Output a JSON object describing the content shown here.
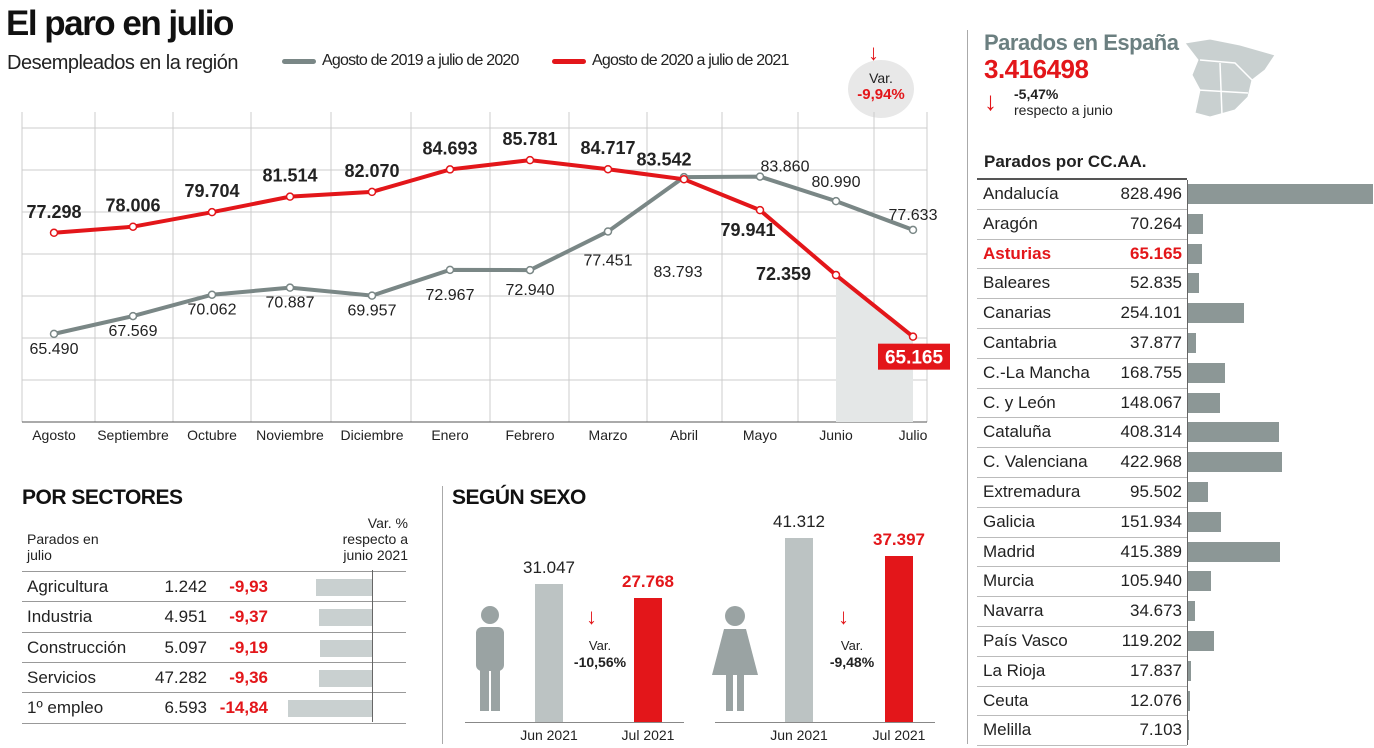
{
  "header": {
    "title": "El paro en julio",
    "subtitle": "Desempleados en la región",
    "variation_label": "Var.",
    "variation_value": "-9,94%"
  },
  "chart_data": [
    {
      "type": "line",
      "title": "El paro en julio",
      "subtitle": "Desempleados en la región",
      "ylabel": "",
      "xlabel": "",
      "ylim": [
        55.2,
        91.4
      ],
      "grid": true,
      "legend": "top",
      "categories": [
        "Agosto",
        "Septiembre",
        "Octubre",
        "Noviembre",
        "Diciembre",
        "Enero",
        "Febrero",
        "Marzo",
        "Abril",
        "Mayo",
        "Junio",
        "Julio"
      ],
      "series": [
        {
          "name": "Agosto de 2019 a julio de 2020",
          "color": "#7a8786",
          "values": [
            65.49,
            67.569,
            70.062,
            70.887,
            69.957,
            72.967,
            72.94,
            77.451,
            83.793,
            83.86,
            80.99,
            77.633
          ],
          "labels": [
            "65.490",
            "67.569",
            "70.062",
            "70.887",
            "69.957",
            "72.967",
            "72.940",
            "77.451",
            "83.793",
            "83.860",
            "80.990",
            "77.633"
          ]
        },
        {
          "name": "Agosto de 2020 a julio de 2021",
          "color": "#e3161a",
          "values": [
            77.298,
            78.006,
            79.704,
            81.514,
            82.07,
            84.693,
            85.781,
            84.717,
            83.542,
            79.941,
            72.359,
            65.165
          ],
          "labels": [
            "77.298",
            "78.006",
            "79.704",
            "81.514",
            "82.070",
            "84.693",
            "85.781",
            "84.717",
            "83.542",
            "79.941",
            "72.359",
            "65.165"
          ]
        }
      ]
    },
    {
      "type": "table",
      "title": "POR SECTORES",
      "col_header_left": "Parados en julio",
      "col_header_right": "Var. % respecto a junio 2021",
      "rows": [
        {
          "sector": "Agricultura",
          "value": "1.242",
          "var": "-9,93",
          "var_num": -9.93
        },
        {
          "sector": "Industria",
          "value": "4.951",
          "var": "-9,37",
          "var_num": -9.37
        },
        {
          "sector": "Construcción",
          "value": "5.097",
          "var": "-9,19",
          "var_num": -9.19
        },
        {
          "sector": "Servicios",
          "value": "47.282",
          "var": "-9,36",
          "var_num": -9.36
        },
        {
          "sector": "1º empleo",
          "value": "6.593",
          "var": "-14,84",
          "var_num": -14.84
        }
      ]
    },
    {
      "type": "bar",
      "title": "SEGÚN SEXO",
      "groups": [
        {
          "sex": "hombre",
          "categories": [
            "Jun 2021",
            "Jul 2021"
          ],
          "values": [
            31.047,
            27.768
          ],
          "labels": [
            "31.047",
            "27.768"
          ],
          "var_label": "Var.",
          "var": "-10,56%"
        },
        {
          "sex": "mujer",
          "categories": [
            "Jun 2021",
            "Jul 2021"
          ],
          "values": [
            41.312,
            37.397
          ],
          "labels": [
            "41.312",
            "37.397"
          ],
          "var_label": "Var.",
          "var": "-9,48%"
        }
      ]
    },
    {
      "type": "bar",
      "title": "Parados por CC.AA.",
      "highlight": "Asturias",
      "categories": [
        "Andalucía",
        "Aragón",
        "Asturias",
        "Baleares",
        "Canarias",
        "Cantabria",
        "C.-La Mancha",
        "C. y León",
        "Cataluña",
        "C. Valenciana",
        "Extremadura",
        "Galicia",
        "Madrid",
        "Murcia",
        "Navarra",
        "País Vasco",
        "La Rioja",
        "Ceuta",
        "Melilla"
      ],
      "values": [
        828496,
        70264,
        65165,
        52835,
        254101,
        37877,
        168755,
        148067,
        408314,
        422968,
        95502,
        151934,
        415389,
        105940,
        34673,
        119202,
        17837,
        12076,
        7103
      ],
      "labels": [
        "828.496",
        "70.264",
        "65.165",
        "52.835",
        "254.101",
        "37.877",
        "168.755",
        "148.067",
        "408.314",
        "422.968",
        "95.502",
        "151.934",
        "415.389",
        "105.940",
        "34.673",
        "119.202",
        "17.837",
        "12.076",
        "7.103"
      ]
    }
  ],
  "spain": {
    "title": "Parados en España",
    "total": "3.416498",
    "change": "-5,47%",
    "change_note": "respecto a junio"
  },
  "colors": {
    "red": "#e3161a",
    "gray": "#7a8786",
    "bar": "#8c9796",
    "light_bar": "#c9d0d0"
  }
}
